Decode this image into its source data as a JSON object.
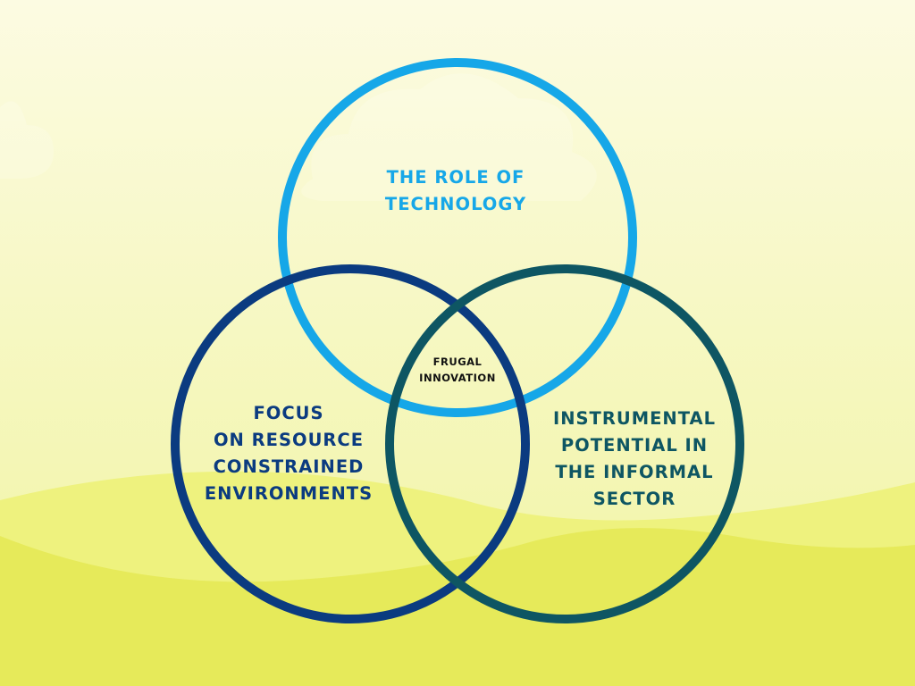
{
  "colors": {
    "sky_top": "#fcfbe2",
    "sky_bottom": "#f0f4a0",
    "hill_back": "#eef27e",
    "hill_front": "#e6ea5a",
    "circle_top": "#16a7e8",
    "circle_left": "#0b3b80",
    "circle_right": "#0e5663",
    "center_text": "#111111"
  },
  "diagram": {
    "top_circle": {
      "lines": [
        "THE ROLE OF",
        "TECHNOLOGY"
      ]
    },
    "left_circle": {
      "lines": [
        "FOCUS",
        "ON RESOURCE",
        "CONSTRAINED",
        "ENVIRONMENTS"
      ]
    },
    "right_circle": {
      "lines": [
        "INSTRUMENTAL",
        "POTENTIAL IN",
        "THE INFORMAL",
        "SECTOR"
      ]
    },
    "center": {
      "lines": [
        "FRUGAL",
        "INNOVATION"
      ]
    }
  }
}
